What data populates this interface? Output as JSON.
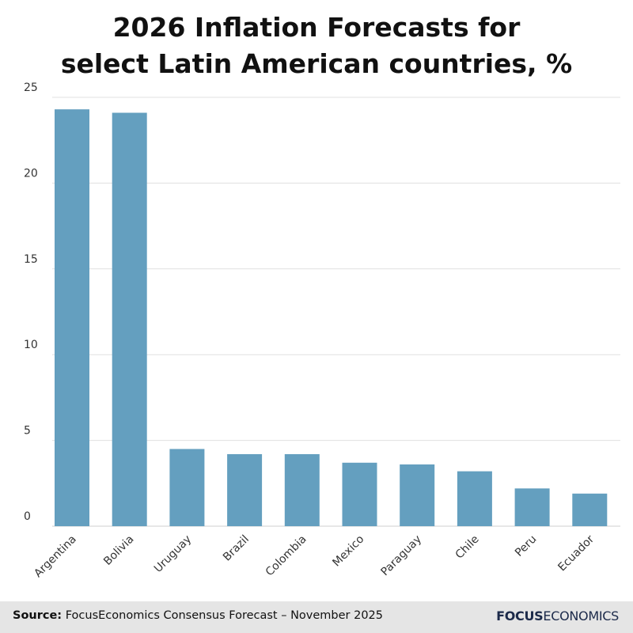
{
  "title_lines": [
    "2026 Inflation Forecasts for",
    "select Latin American countries, %"
  ],
  "footer": {
    "source_label": "Source:",
    "source_text": "FocusEconomics Consensus Forecast – November 2025",
    "logo_part1": "FOCUS",
    "logo_part2": "ECONOMICS"
  },
  "colors": {
    "bar": "#649fbf",
    "grid": "#e0e0e0",
    "footer_bg": "#e5e5e5"
  },
  "chart_data": {
    "type": "bar",
    "title": "2026 Inflation Forecasts for select Latin American countries, %",
    "xlabel": "",
    "ylabel": "",
    "categories": [
      "Argentina",
      "Bolivia",
      "Uruguay",
      "Brazil",
      "Colombia",
      "Mexico",
      "Paraguay",
      "Chile",
      "Peru",
      "Ecuador"
    ],
    "values": [
      24.3,
      24.1,
      4.5,
      4.2,
      4.2,
      3.7,
      3.6,
      3.2,
      2.2,
      1.9
    ],
    "ylim": [
      0,
      25
    ],
    "yticks": [
      0,
      5,
      10,
      15,
      20,
      25
    ],
    "grid": true,
    "legend": "none"
  }
}
